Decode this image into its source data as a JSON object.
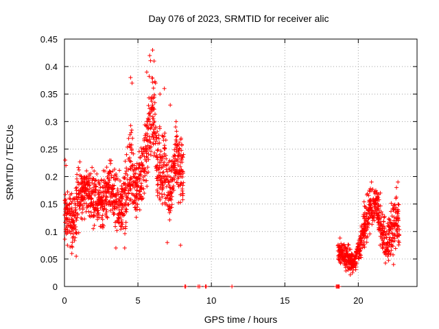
{
  "chart_data": {
    "type": "scatter",
    "title": "Day 076 of 2023, SRMTID for receiver alic",
    "xlabel": "GPS time / hours",
    "ylabel": "SRMTID / TECUs",
    "xlim": [
      0,
      24
    ],
    "ylim": [
      0,
      0.45
    ],
    "xticks": [
      "0",
      "5",
      "10",
      "15",
      "20"
    ],
    "yticks": [
      "0",
      "0.05",
      "0.1",
      "0.15",
      "0.2",
      "0.25",
      "0.3",
      "0.35",
      "0.4",
      "0.45"
    ],
    "grid": true,
    "marker": "plus",
    "color": "#ff0000",
    "envelope": [
      [
        0.0,
        0.13,
        0.04
      ],
      [
        0.3,
        0.12,
        0.05
      ],
      [
        0.6,
        0.12,
        0.05
      ],
      [
        0.9,
        0.16,
        0.06
      ],
      [
        1.2,
        0.17,
        0.05
      ],
      [
        1.5,
        0.18,
        0.04
      ],
      [
        1.8,
        0.16,
        0.05
      ],
      [
        2.1,
        0.17,
        0.05
      ],
      [
        2.4,
        0.15,
        0.04
      ],
      [
        2.7,
        0.16,
        0.05
      ],
      [
        3.0,
        0.18,
        0.05
      ],
      [
        3.3,
        0.17,
        0.05
      ],
      [
        3.6,
        0.15,
        0.05
      ],
      [
        3.9,
        0.14,
        0.06
      ],
      [
        4.2,
        0.16,
        0.07
      ],
      [
        4.5,
        0.22,
        0.09
      ],
      [
        4.8,
        0.17,
        0.06
      ],
      [
        5.1,
        0.19,
        0.06
      ],
      [
        5.4,
        0.21,
        0.06
      ],
      [
        5.7,
        0.28,
        0.09
      ],
      [
        6.0,
        0.32,
        0.09
      ],
      [
        6.3,
        0.24,
        0.07
      ],
      [
        6.6,
        0.2,
        0.07
      ],
      [
        6.9,
        0.22,
        0.08
      ],
      [
        7.2,
        0.17,
        0.06
      ],
      [
        7.5,
        0.23,
        0.06
      ],
      [
        7.8,
        0.22,
        0.07
      ],
      [
        8.1,
        0.2,
        0.06
      ],
      [
        18.6,
        0.065,
        0.025
      ],
      [
        18.9,
        0.06,
        0.025
      ],
      [
        19.2,
        0.055,
        0.025
      ],
      [
        19.5,
        0.045,
        0.02
      ],
      [
        19.8,
        0.05,
        0.02
      ],
      [
        20.1,
        0.07,
        0.025
      ],
      [
        20.4,
        0.11,
        0.04
      ],
      [
        20.7,
        0.13,
        0.04
      ],
      [
        21.0,
        0.15,
        0.04
      ],
      [
        21.3,
        0.15,
        0.03
      ],
      [
        21.6,
        0.1,
        0.04
      ],
      [
        21.9,
        0.08,
        0.04
      ],
      [
        22.2,
        0.1,
        0.05
      ],
      [
        22.5,
        0.12,
        0.05
      ],
      [
        22.8,
        0.11,
        0.05
      ]
    ],
    "points": [
      [
        4.5,
        0.38
      ],
      [
        4.6,
        0.37
      ],
      [
        5.6,
        0.39
      ],
      [
        5.8,
        0.42
      ],
      [
        6.0,
        0.43
      ],
      [
        6.1,
        0.41
      ],
      [
        6.2,
        0.37
      ],
      [
        6.5,
        0.35
      ],
      [
        6.8,
        0.36
      ],
      [
        7.2,
        0.33
      ],
      [
        7.6,
        0.3
      ],
      [
        8.1,
        0.24
      ],
      [
        0.05,
        0.23
      ],
      [
        0.1,
        0.22
      ],
      [
        0.2,
        0.075
      ],
      [
        0.5,
        0.06
      ],
      [
        0.8,
        0.055
      ],
      [
        3.5,
        0.07
      ],
      [
        4.1,
        0.07
      ],
      [
        7.0,
        0.08
      ],
      [
        7.9,
        0.075
      ],
      [
        20.9,
        0.19
      ],
      [
        22.7,
        0.19
      ],
      [
        22.6,
        0.18
      ],
      [
        21.5,
        0.17
      ],
      [
        22.4,
        0.04
      ],
      [
        19.6,
        0.025
      ],
      [
        19.3,
        0.03
      ],
      [
        21.1,
        0.12
      ]
    ],
    "zero_points": [
      8.2,
      8.25,
      9.1,
      9.2,
      9.6,
      9.65,
      11.4,
      18.5,
      18.55,
      18.6,
      18.65,
      18.7
    ]
  }
}
